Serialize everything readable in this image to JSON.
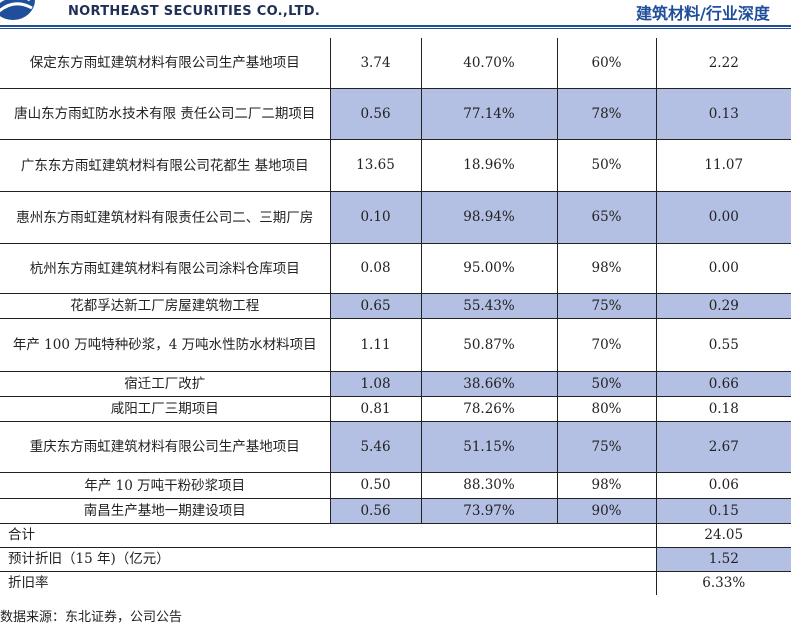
{
  "header": {
    "company": "NORTHEAST SECURITIES CO.,LTD.",
    "report_type": "建筑材料/行业深度"
  },
  "table": {
    "rows": [
      {
        "name": "保定东方雨虹建筑材料有限公司生产基地项目",
        "v1": "3.74",
        "v2": "40.70%",
        "v3": "60%",
        "v4": "2.22",
        "highlight": false
      },
      {
        "name": "唐山东方雨虹防水技术有限 责任公司二厂二期项目",
        "v1": "0.56",
        "v2": "77.14%",
        "v3": "78%",
        "v4": "0.13",
        "highlight": true
      },
      {
        "name": "广东东方雨虹建筑材料有限公司花都生 基地项目",
        "v1": "13.65",
        "v2": "18.96%",
        "v3": "50%",
        "v4": "11.07",
        "highlight": false
      },
      {
        "name": "惠州东方雨虹建筑材料有限责任公司二、三期厂房",
        "v1": "0.10",
        "v2": "98.94%",
        "v3": "65%",
        "v4": "0.00",
        "highlight": true
      },
      {
        "name": "杭州东方雨虹建筑材料有限公司涂料仓库项目",
        "v1": "0.08",
        "v2": "95.00%",
        "v3": "98%",
        "v4": "0.00",
        "highlight": false
      },
      {
        "name": "花都孚达新工厂房屋建筑物工程",
        "v1": "0.65",
        "v2": "55.43%",
        "v3": "75%",
        "v4": "0.29",
        "highlight": true
      },
      {
        "name": "年产 100 万吨特种砂浆，4 万吨水性防水材料项目",
        "v1": "1.11",
        "v2": "50.87%",
        "v3": "70%",
        "v4": "0.55",
        "highlight": false
      },
      {
        "name": "宿迁工厂改扩",
        "v1": "1.08",
        "v2": "38.66%",
        "v3": "50%",
        "v4": "0.66",
        "highlight": true
      },
      {
        "name": "咸阳工厂三期项目",
        "v1": "0.81",
        "v2": "78.26%",
        "v3": "80%",
        "v4": "0.18",
        "highlight": false
      },
      {
        "name": "重庆东方雨虹建筑材料有限公司生产基地项目",
        "v1": "5.46",
        "v2": "51.15%",
        "v3": "75%",
        "v4": "2.67",
        "highlight": true
      },
      {
        "name": "年产 10 万吨干粉砂浆项目",
        "v1": "0.50",
        "v2": "88.30%",
        "v3": "98%",
        "v4": "0.06",
        "highlight": false
      },
      {
        "name": "南昌生产基地一期建设项目",
        "v1": "0.56",
        "v2": "73.97%",
        "v3": "90%",
        "v4": "0.15",
        "highlight": true
      }
    ],
    "summary": [
      {
        "label": "合计",
        "value": "24.05",
        "highlight": false
      },
      {
        "label": "预计折旧（15 年)（亿元）",
        "value": "1.52",
        "highlight": true
      },
      {
        "label": "折旧率",
        "value": "6.33%",
        "highlight": false
      }
    ]
  },
  "source": "数据来源：东北证券，公司公告"
}
